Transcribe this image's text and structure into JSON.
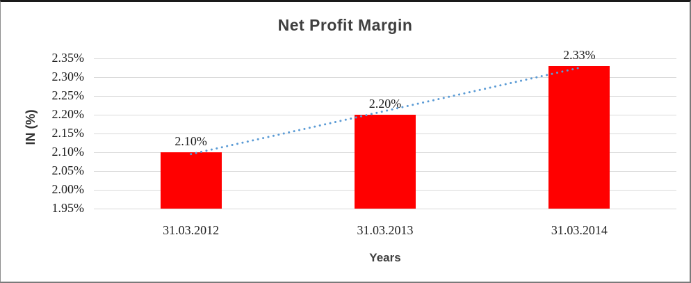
{
  "chart_data": {
    "type": "bar",
    "title": "Net Profit Margin",
    "xlabel": "Years",
    "ylabel": "IN (%)",
    "categories": [
      "31.03.2012",
      "31.03.2013",
      "31.03.2014"
    ],
    "values": [
      2.1,
      2.2,
      2.33
    ],
    "data_labels": [
      "2.10%",
      "2.20%",
      "2.33%"
    ],
    "ytick_labels": [
      "1.95%",
      "2.00%",
      "2.05%",
      "2.10%",
      "2.15%",
      "2.20%",
      "2.25%",
      "2.30%",
      "2.35%"
    ],
    "yticks": [
      1.95,
      2.0,
      2.05,
      2.1,
      2.15,
      2.2,
      2.25,
      2.3,
      2.35
    ],
    "ylim": [
      1.95,
      2.35
    ],
    "grid": "horizontal",
    "legend": "none",
    "bar_color": "#FF0000",
    "gridline_color": "#D9D9D9",
    "trendline": {
      "type": "linear",
      "style": "dotted",
      "color": "#5B9BD5"
    }
  }
}
